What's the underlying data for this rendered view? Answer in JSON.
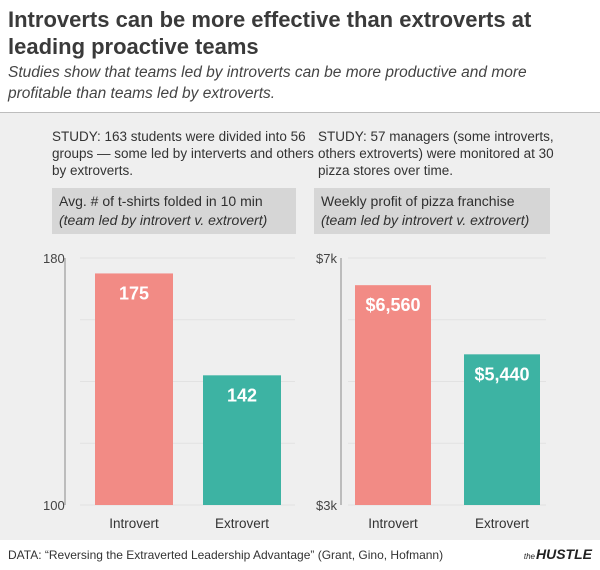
{
  "header": {
    "title": "Introverts can be more effective than extroverts at leading proactive teams",
    "subtitle": "Studies show that teams led by introverts can be more productive and more profitable than teams led by extroverts."
  },
  "panels": [
    {
      "study": "STUDY: 163 students were divided into 56 groups — some led by interverts and others by extroverts.",
      "label_line1": "Avg. # of t-shirts folded in 10 min",
      "label_line2": "(team led by introvert v. extrovert)"
    },
    {
      "study": "STUDY: 57 managers (some introverts, others extroverts) were monitored at 30 pizza stores over time.",
      "label_line1": "Weekly profit of pizza franchise",
      "label_line2": "(team led by introvert v. extrovert)"
    }
  ],
  "chart_data": [
    {
      "type": "bar",
      "title": "Avg. # of t-shirts folded in 10 min",
      "categories": [
        "Introvert",
        "Extrovert"
      ],
      "values": [
        175,
        142
      ],
      "data_labels": [
        "175",
        "142"
      ],
      "ylim": [
        100,
        180
      ],
      "yticks": [
        100,
        180
      ],
      "ytick_labels": [
        "100",
        "180"
      ],
      "colors": [
        "#f28b85",
        "#3db3a3"
      ],
      "grid": true
    },
    {
      "type": "bar",
      "title": "Weekly profit of pizza franchise",
      "categories": [
        "Introvert",
        "Extrovert"
      ],
      "values": [
        6560,
        5440
      ],
      "data_labels": [
        "$6,560",
        "$5,440"
      ],
      "ylim": [
        3000,
        7000
      ],
      "yticks": [
        3000,
        7000
      ],
      "ytick_labels": [
        "$3k",
        "$7k"
      ],
      "colors": [
        "#f28b85",
        "#3db3a3"
      ],
      "grid": true
    }
  ],
  "footer": {
    "source": "DATA: “Reversing the Extraverted Leadership Advantage” (Grant, Gino, Hofmann)",
    "brand_small": "the",
    "brand": "HUSTLE"
  }
}
